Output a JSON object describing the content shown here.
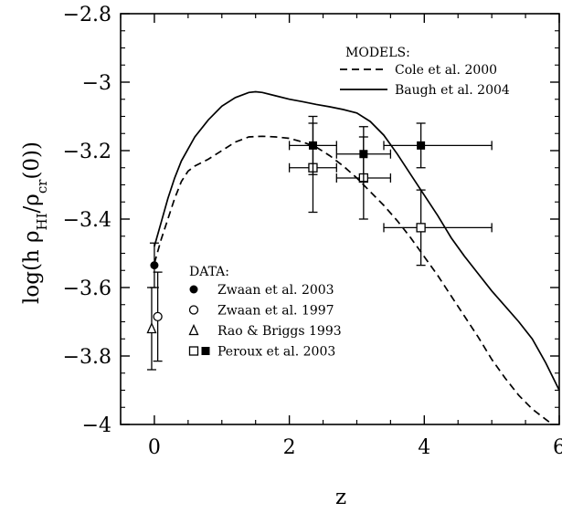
{
  "chart_data": {
    "type": "scatter",
    "xlabel": "z",
    "ylabel": "log(h ρ_HI/ρ_cr(0))",
    "ylabel_parts": {
      "pre": "log(h ρ",
      "sub1": "HI",
      "mid": "/ρ",
      "sub2": "cr",
      "post": "(0))"
    },
    "xlim": [
      -0.5,
      6
    ],
    "ylim": [
      -4,
      -2.8
    ],
    "xticks": [
      0,
      2,
      4,
      6
    ],
    "xtick_labels": [
      "0",
      "2",
      "4",
      "6"
    ],
    "yticks": [
      -4,
      -3.8,
      -3.6,
      -3.4,
      -3.2,
      -3,
      -2.8
    ],
    "ytick_labels": [
      "−4",
      "−3.8",
      "−3.6",
      "−3.4",
      "−3.2",
      "−3",
      "−2.8"
    ],
    "grid": false,
    "models_heading": "MODELS:",
    "data_heading": "DATA:",
    "models": [
      {
        "name": "Cole et al. 2000",
        "style": "dashed",
        "x": [
          0.0,
          0.1,
          0.2,
          0.3,
          0.4,
          0.5,
          0.6,
          0.8,
          1.0,
          1.2,
          1.4,
          1.6,
          1.8,
          2.0,
          2.2,
          2.4,
          2.6,
          2.8,
          3.0,
          3.2,
          3.4,
          3.6,
          3.8,
          4.0,
          4.2,
          4.4,
          4.6,
          4.8,
          5.0,
          5.2,
          5.4,
          5.6,
          5.8,
          5.9
        ],
        "y": [
          -3.53,
          -3.46,
          -3.4,
          -3.34,
          -3.29,
          -3.26,
          -3.245,
          -3.225,
          -3.2,
          -3.175,
          -3.16,
          -3.158,
          -3.16,
          -3.164,
          -3.175,
          -3.19,
          -3.215,
          -3.245,
          -3.28,
          -3.32,
          -3.36,
          -3.405,
          -3.455,
          -3.51,
          -3.565,
          -3.625,
          -3.685,
          -3.745,
          -3.81,
          -3.865,
          -3.915,
          -3.955,
          -3.985,
          -4.0
        ]
      },
      {
        "name": "Baugh et al. 2004",
        "style": "solid",
        "x": [
          0.0,
          0.1,
          0.2,
          0.3,
          0.4,
          0.6,
          0.8,
          1.0,
          1.2,
          1.4,
          1.5,
          1.6,
          1.8,
          2.0,
          2.2,
          2.4,
          2.6,
          2.8,
          3.0,
          3.2,
          3.4,
          3.6,
          3.8,
          4.0,
          4.2,
          4.4,
          4.6,
          4.8,
          5.0,
          5.2,
          5.4,
          5.6,
          5.8,
          6.0
        ],
        "y": [
          -3.48,
          -3.41,
          -3.34,
          -3.28,
          -3.23,
          -3.16,
          -3.11,
          -3.07,
          -3.045,
          -3.03,
          -3.028,
          -3.03,
          -3.04,
          -3.05,
          -3.057,
          -3.065,
          -3.072,
          -3.08,
          -3.09,
          -3.115,
          -3.155,
          -3.21,
          -3.27,
          -3.33,
          -3.39,
          -3.455,
          -3.51,
          -3.56,
          -3.61,
          -3.655,
          -3.7,
          -3.75,
          -3.82,
          -3.9
        ]
      }
    ],
    "datasets": [
      {
        "name": "Zwaan et al. 2003",
        "marker": "filled-circle",
        "points": [
          {
            "x": 0.0,
            "y": -3.535,
            "yerr": [
              0.065,
              0.065
            ],
            "xerr": [
              0,
              0
            ]
          }
        ]
      },
      {
        "name": "Zwaan et al. 1997",
        "marker": "open-circle",
        "points": [
          {
            "x": 0.05,
            "y": -3.685,
            "yerr": [
              0.13,
              0.13
            ],
            "xerr": [
              0,
              0
            ]
          }
        ]
      },
      {
        "name": "Rao & Briggs 1993",
        "marker": "open-triangle",
        "points": [
          {
            "x": -0.04,
            "y": -3.72,
            "yerr": [
              0.12,
              0.12
            ],
            "xerr": [
              0,
              0
            ]
          }
        ]
      },
      {
        "name": "Peroux et al. 2003",
        "marker": "open-square",
        "points": [
          {
            "x": 2.35,
            "y": -3.25,
            "xerr": [
              0.35,
              0.35
            ],
            "yerr": [
              0.13,
              0.13
            ]
          },
          {
            "x": 3.1,
            "y": -3.28,
            "xerr": [
              0.4,
              0.4
            ],
            "yerr": [
              0.12,
              0.12
            ]
          },
          {
            "x": 3.95,
            "y": -3.425,
            "xerr": [
              0.55,
              1.05
            ],
            "yerr": [
              0.11,
              0.11
            ]
          }
        ]
      },
      {
        "name": "Peroux et al. 2003",
        "marker": "filled-square",
        "points": [
          {
            "x": 2.35,
            "y": -3.185,
            "xerr": [
              0.35,
              0.35
            ],
            "yerr": [
              0.085,
              0.085
            ]
          },
          {
            "x": 3.1,
            "y": -3.21,
            "xerr": [
              0.4,
              0.4
            ],
            "yerr": [
              0.08,
              0.08
            ]
          },
          {
            "x": 3.95,
            "y": -3.185,
            "xerr": [
              0.55,
              1.05
            ],
            "yerr": [
              0.065,
              0.065
            ]
          }
        ]
      }
    ],
    "legend_entries": [
      {
        "label": "Zwaan et al. 2003",
        "markers": [
          "filled-circle"
        ]
      },
      {
        "label": "Zwaan et al. 1997",
        "markers": [
          "open-circle"
        ]
      },
      {
        "label": "Rao & Briggs 1993",
        "markers": [
          "open-triangle"
        ]
      },
      {
        "label": "Peroux et al. 2003",
        "markers": [
          "open-square",
          "filled-square"
        ]
      }
    ],
    "legend_placement": {
      "models": "top-right",
      "data": "lower-left"
    }
  }
}
